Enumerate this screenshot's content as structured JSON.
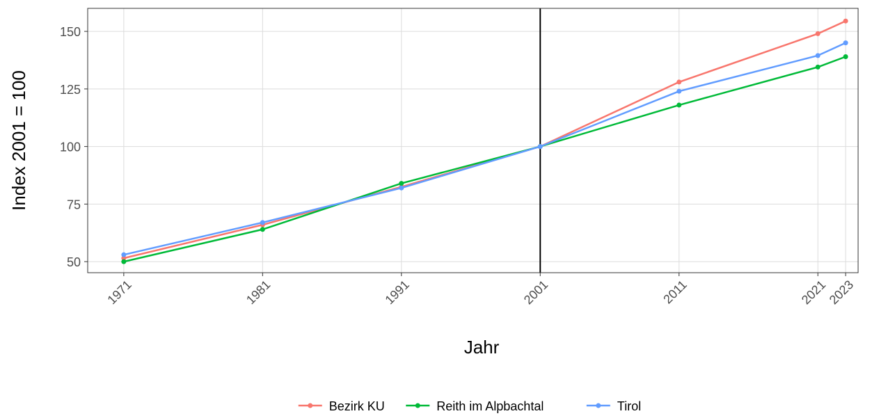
{
  "chart_data": {
    "type": "line",
    "x_label": "Jahr",
    "y_label": "Index 2001 = 100",
    "x": [
      1971,
      1981,
      1991,
      2001,
      2011,
      2021,
      2023
    ],
    "series": [
      {
        "name": "Bezirk KU",
        "color": "#F8766D",
        "values": [
          51.5,
          66,
          82.5,
          100,
          128,
          149,
          154.5
        ]
      },
      {
        "name": "Reith im Alpbachtal",
        "color": "#00BA38",
        "values": [
          50,
          64,
          84,
          100,
          118,
          134.5,
          139
        ]
      },
      {
        "name": "Tirol",
        "color": "#619CFF",
        "values": [
          53,
          67,
          82,
          100,
          124,
          139.5,
          145
        ]
      }
    ],
    "xlim": [
      1968.4,
      2023.9
    ],
    "xticks": [
      1971,
      1981,
      1991,
      2001,
      2011,
      2021,
      2023
    ],
    "ylim": [
      45.2,
      160
    ],
    "yticks": [
      50,
      75,
      100,
      125,
      150
    ],
    "vline": 2001,
    "grid": true,
    "legend": "bottom"
  }
}
